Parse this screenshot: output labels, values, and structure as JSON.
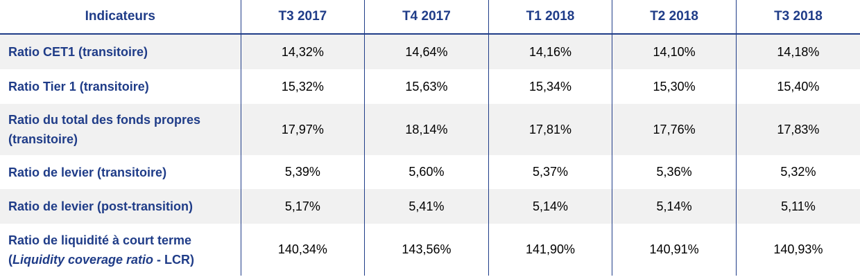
{
  "table": {
    "header": {
      "indicator": "Indicateurs",
      "periods": [
        "T3 2017",
        "T4 2017",
        "T1 2018",
        "T2 2018",
        "T3 2018"
      ]
    },
    "rows": [
      {
        "label": "Ratio CET1 (transitoire)",
        "values": [
          "14,32%",
          "14,64%",
          "14,16%",
          "14,10%",
          "14,18%"
        ]
      },
      {
        "label": "Ratio Tier 1 (transitoire)",
        "values": [
          "15,32%",
          "15,63%",
          "15,34%",
          "15,30%",
          "15,40%"
        ]
      },
      {
        "label_line1": "Ratio du total des fonds propres",
        "label_line2": "(transitoire)",
        "values": [
          "17,97%",
          "18,14%",
          "17,81%",
          "17,76%",
          "17,83%"
        ]
      },
      {
        "label": "Ratio de levier (transitoire)",
        "values": [
          "5,39%",
          "5,60%",
          "5,37%",
          "5,36%",
          "5,32%"
        ]
      },
      {
        "label": "Ratio de levier (post-transition)",
        "values": [
          "5,17%",
          "5,41%",
          "5,14%",
          "5,14%",
          "5,11%"
        ]
      },
      {
        "label_line1": "Ratio de liquidité à court terme",
        "label_open": "(",
        "label_italic": "Liquidity coverage ratio",
        "label_rest": " - LCR)",
        "values": [
          "140,34%",
          "143,56%",
          "141,90%",
          "140,91%",
          "140,93%"
        ]
      }
    ]
  },
  "colors": {
    "header_text": "#1f3c88",
    "label_text": "#1f3c88",
    "shaded_row": "#f1f1f1",
    "rule": "#1f3c88"
  }
}
